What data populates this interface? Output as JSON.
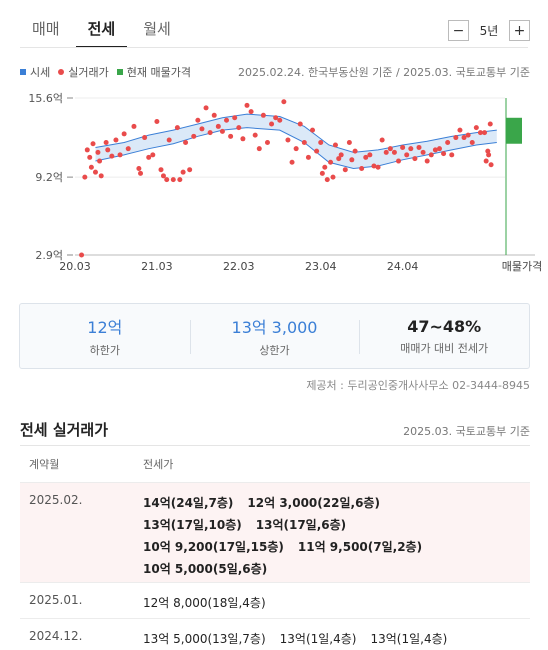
{
  "tabs": [
    {
      "label": "매매",
      "active": false
    },
    {
      "label": "전세",
      "active": true
    },
    {
      "label": "월세",
      "active": false
    }
  ],
  "period": {
    "minus": "−",
    "value": "5년",
    "plus": "+"
  },
  "legend": [
    {
      "label": "시세",
      "color": "#3b7fd6",
      "shape": "square"
    },
    {
      "label": "실거래가",
      "color": "#e94b4b",
      "shape": "circle"
    },
    {
      "label": "현재 매물가격",
      "color": "#3aa64a",
      "shape": "square"
    }
  ],
  "source_top": "2025.02.24. 한국부동산원 기준 / 2025.03. 국토교통부 기준",
  "chart_data": {
    "type": "scatter",
    "ylim": [
      2.9,
      15.6
    ],
    "yticks": [
      {
        "v": 15.6,
        "label": "15.6억"
      },
      {
        "v": 9.2,
        "label": "9.2억"
      },
      {
        "v": 2.9,
        "label": "2.9억"
      }
    ],
    "xlim": [
      2020.0,
      2025.25
    ],
    "xticks": [
      {
        "v": 2020.0,
        "label": "20.03"
      },
      {
        "v": 2021.0,
        "label": "21.03"
      },
      {
        "v": 2022.0,
        "label": "22.03"
      },
      {
        "v": 2023.0,
        "label": "23.04"
      },
      {
        "v": 2024.0,
        "label": "24.04"
      }
    ],
    "current_label": "매물가격",
    "market_band": [
      {
        "x": 2020.25,
        "low": 10.5,
        "high": 11.6
      },
      {
        "x": 2020.6,
        "low": 11.0,
        "high": 12.0
      },
      {
        "x": 2020.9,
        "low": 11.5,
        "high": 12.6
      },
      {
        "x": 2021.2,
        "low": 11.9,
        "high": 13.0
      },
      {
        "x": 2021.5,
        "low": 12.5,
        "high": 13.5
      },
      {
        "x": 2021.8,
        "low": 13.0,
        "high": 14.0
      },
      {
        "x": 2022.1,
        "low": 13.2,
        "high": 14.3
      },
      {
        "x": 2022.5,
        "low": 13.0,
        "high": 14.1
      },
      {
        "x": 2022.8,
        "low": 12.0,
        "high": 13.3
      },
      {
        "x": 2023.1,
        "low": 10.4,
        "high": 11.8
      },
      {
        "x": 2023.4,
        "low": 9.9,
        "high": 11.2
      },
      {
        "x": 2023.7,
        "low": 10.1,
        "high": 11.4
      },
      {
        "x": 2024.0,
        "low": 10.6,
        "high": 11.8
      },
      {
        "x": 2024.3,
        "low": 11.0,
        "high": 12.1
      },
      {
        "x": 2024.6,
        "low": 11.4,
        "high": 12.5
      },
      {
        "x": 2024.9,
        "low": 11.8,
        "high": 12.8
      },
      {
        "x": 2025.15,
        "low": 12.0,
        "high": 13.0
      }
    ],
    "current_price": {
      "low": 11.9,
      "high": 14.0
    },
    "transactions": [
      [
        2020.08,
        2.9
      ],
      [
        2020.12,
        9.2
      ],
      [
        2020.15,
        11.4
      ],
      [
        2020.18,
        10.8
      ],
      [
        2020.2,
        10.0
      ],
      [
        2020.22,
        11.9
      ],
      [
        2020.25,
        9.6
      ],
      [
        2020.28,
        11.2
      ],
      [
        2020.3,
        10.5
      ],
      [
        2020.32,
        9.3
      ],
      [
        2020.38,
        12.0
      ],
      [
        2020.4,
        11.4
      ],
      [
        2020.45,
        10.9
      ],
      [
        2020.5,
        12.2
      ],
      [
        2020.55,
        11.0
      ],
      [
        2020.6,
        12.7
      ],
      [
        2020.65,
        11.5
      ],
      [
        2020.72,
        13.3
      ],
      [
        2020.78,
        9.9
      ],
      [
        2020.8,
        9.5
      ],
      [
        2020.85,
        12.4
      ],
      [
        2020.9,
        10.8
      ],
      [
        2020.95,
        11.0
      ],
      [
        2021.0,
        13.7
      ],
      [
        2021.05,
        9.8
      ],
      [
        2021.08,
        9.3
      ],
      [
        2021.12,
        9.0
      ],
      [
        2021.15,
        12.2
      ],
      [
        2021.2,
        9.0
      ],
      [
        2021.25,
        13.2
      ],
      [
        2021.28,
        9.0
      ],
      [
        2021.32,
        9.6
      ],
      [
        2021.35,
        12.0
      ],
      [
        2021.4,
        9.8
      ],
      [
        2021.45,
        12.5
      ],
      [
        2021.5,
        13.8
      ],
      [
        2021.55,
        13.1
      ],
      [
        2021.6,
        14.8
      ],
      [
        2021.65,
        12.8
      ],
      [
        2021.7,
        14.2
      ],
      [
        2021.75,
        13.3
      ],
      [
        2021.8,
        12.9
      ],
      [
        2021.85,
        13.8
      ],
      [
        2021.9,
        12.5
      ],
      [
        2021.95,
        14.0
      ],
      [
        2022.0,
        13.2
      ],
      [
        2022.05,
        12.3
      ],
      [
        2022.1,
        15.0
      ],
      [
        2022.15,
        14.5
      ],
      [
        2022.2,
        12.6
      ],
      [
        2022.25,
        11.5
      ],
      [
        2022.3,
        14.2
      ],
      [
        2022.35,
        12.0
      ],
      [
        2022.4,
        13.5
      ],
      [
        2022.45,
        14.0
      ],
      [
        2022.5,
        13.8
      ],
      [
        2022.55,
        15.3
      ],
      [
        2022.6,
        12.2
      ],
      [
        2022.65,
        10.4
      ],
      [
        2022.7,
        11.5
      ],
      [
        2022.75,
        13.5
      ],
      [
        2022.8,
        12.0
      ],
      [
        2022.85,
        10.8
      ],
      [
        2022.9,
        13.0
      ],
      [
        2022.95,
        11.3
      ],
      [
        2023.0,
        12.0
      ],
      [
        2023.02,
        9.5
      ],
      [
        2023.05,
        10.0
      ],
      [
        2023.08,
        9.0
      ],
      [
        2023.12,
        10.4
      ],
      [
        2023.15,
        9.2
      ],
      [
        2023.18,
        11.8
      ],
      [
        2023.22,
        10.7
      ],
      [
        2023.25,
        11.0
      ],
      [
        2023.3,
        9.8
      ],
      [
        2023.35,
        12.0
      ],
      [
        2023.38,
        10.6
      ],
      [
        2023.42,
        11.3
      ],
      [
        2023.5,
        9.9
      ],
      [
        2023.55,
        10.8
      ],
      [
        2023.6,
        11.0
      ],
      [
        2023.65,
        10.1
      ],
      [
        2023.7,
        10.0
      ],
      [
        2023.75,
        12.2
      ],
      [
        2023.8,
        11.2
      ],
      [
        2023.85,
        11.5
      ],
      [
        2023.9,
        11.2
      ],
      [
        2023.95,
        10.5
      ],
      [
        2024.0,
        11.6
      ],
      [
        2024.05,
        11.0
      ],
      [
        2024.1,
        11.5
      ],
      [
        2024.15,
        10.7
      ],
      [
        2024.2,
        11.6
      ],
      [
        2024.25,
        11.2
      ],
      [
        2024.3,
        10.5
      ],
      [
        2024.35,
        11.0
      ],
      [
        2024.4,
        11.4
      ],
      [
        2024.45,
        11.5
      ],
      [
        2024.5,
        11.1
      ],
      [
        2024.55,
        12.0
      ],
      [
        2024.6,
        11.0
      ],
      [
        2024.65,
        12.4
      ],
      [
        2024.7,
        13.0
      ],
      [
        2024.75,
        12.4
      ],
      [
        2024.8,
        12.6
      ],
      [
        2024.85,
        12.0
      ],
      [
        2024.9,
        13.2
      ],
      [
        2024.95,
        12.8
      ],
      [
        2025.0,
        12.8
      ],
      [
        2025.02,
        10.5
      ],
      [
        2025.04,
        11.3
      ],
      [
        2025.05,
        11.0
      ],
      [
        2025.07,
        13.5
      ],
      [
        2025.08,
        10.2
      ]
    ]
  },
  "summary": [
    {
      "value": "12억",
      "label": "하한가",
      "dark": false
    },
    {
      "value": "13억 3,000",
      "label": "상한가",
      "dark": false
    },
    {
      "value": "47~48%",
      "label": "매매가 대비 전세가",
      "dark": true
    }
  ],
  "provider": "제공처 : 두리공인중개사사무소 02-3444-8945",
  "section": {
    "title": "전세 실거래가",
    "source": "2025.03. 국토교통부 기준"
  },
  "table": {
    "headers": {
      "date": "계약월",
      "price": "전세가"
    },
    "rows": [
      {
        "date": "2025.02.",
        "highlight": true,
        "lines": [
          [
            "14억(24일,7층)",
            "12억 3,000(22일,6층)"
          ],
          [
            "13억(17일,10층)",
            "13억(17일,6층)"
          ],
          [
            "10억 9,200(17일,15층)",
            "11억 9,500(7일,2층)"
          ],
          [
            "10억 5,000(5일,6층)"
          ]
        ]
      },
      {
        "date": "2025.01.",
        "highlight": false,
        "lines": [
          [
            "12억 8,000(18일,4층)"
          ]
        ]
      },
      {
        "date": "2024.12.",
        "highlight": false,
        "lines": [
          [
            "13억 5,000(13일,7층)",
            "13억(1일,4층)",
            "13억(1일,4층)"
          ]
        ]
      }
    ]
  }
}
